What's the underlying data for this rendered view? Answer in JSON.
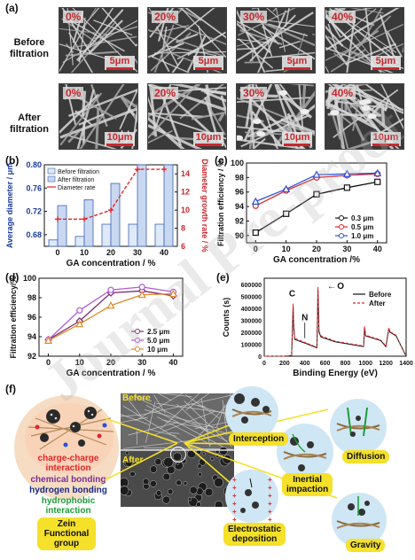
{
  "panel_labels": {
    "a": "(a)",
    "b": "(b)",
    "c": "(c)",
    "d": "(d)",
    "e": "(e)",
    "f": "(f)"
  },
  "panel_a": {
    "row_labels": [
      "Before\nfiltration",
      "After\nfiltration"
    ],
    "concentrations": [
      "0%",
      "20%",
      "30%",
      "40%"
    ],
    "scale_before": "5μm",
    "scale_after": "10μm"
  },
  "panel_f": {
    "before_label": "Before",
    "after_label": "After",
    "mechanisms": [
      "Interception",
      "Inertial\nimpaction",
      "Diffusion",
      "Electrostatic\ndeposition",
      "Gravity"
    ],
    "interactions": [
      "charge-charge\ninteraction",
      "chemical bonding",
      "hydrogen bonding",
      "hydrophobic\ninteraction"
    ],
    "interaction_colors": [
      "#e0262b",
      "#7b2d92",
      "#1a2a8a",
      "#1f9c3a"
    ],
    "zein_label": "Zein\nFunctional\ngroup"
  },
  "watermark": "Journal Pre-proof",
  "chart_data": [
    {
      "panel": "b",
      "type": "bar",
      "categories": [
        "0",
        "10",
        "20",
        "30",
        "40"
      ],
      "series": [
        {
          "name": "Before filtration",
          "values": [
            0.671,
            0.677,
            0.698,
            0.698,
            0.698
          ]
        },
        {
          "name": "After filtration",
          "values": [
            0.73,
            0.74,
            0.768,
            0.8,
            0.8
          ]
        },
        {
          "name": "Diameter rate",
          "values": [
            9.0,
            9.0,
            10.0,
            14.5,
            14.5
          ]
        }
      ],
      "xlabel": "GA concentration / %",
      "ylabel": "Average diameter / μm",
      "y2label": "Diameter growth rate / %",
      "ylim": [
        0.66,
        0.8
      ],
      "yticks": [
        "0.68",
        "0.72",
        "0.76",
        "0.80"
      ],
      "y2ticks": [
        "6",
        "8",
        "10",
        "12",
        "14"
      ],
      "xticks": [
        "0",
        "10",
        "20",
        "30",
        "40"
      ]
    },
    {
      "panel": "c",
      "type": "line",
      "x": [
        0,
        10,
        20,
        30,
        40
      ],
      "series": [
        {
          "name": "0.3 μm",
          "values": [
            90.4,
            93.0,
            95.7,
            96.6,
            97.4
          ]
        },
        {
          "name": "0.5 μm",
          "values": [
            94.1,
            96.2,
            98.0,
            98.3,
            98.5
          ]
        },
        {
          "name": "1.0 μm",
          "values": [
            94.7,
            96.4,
            98.4,
            98.5,
            98.6
          ]
        }
      ],
      "xlabel": "GA concentration /%",
      "ylabel": "Filtration efficiency / %",
      "ylim": [
        89,
        100
      ],
      "yticks": [
        "90",
        "92",
        "94",
        "96",
        "98",
        "100"
      ],
      "xticks": [
        "0",
        "10",
        "20",
        "30",
        "40"
      ],
      "colors": [
        "#111111",
        "#e0262b",
        "#2a4fd8"
      ],
      "markers": [
        "square",
        "circle",
        "triangle"
      ],
      "legend": "bottom-right"
    },
    {
      "panel": "d",
      "type": "line",
      "x": [
        0,
        10,
        20,
        30,
        40
      ],
      "series": [
        {
          "name": "2.5 μm",
          "values": [
            93.7,
            95.6,
            98.5,
            98.7,
            98.2
          ]
        },
        {
          "name": "5.0 μm",
          "values": [
            93.7,
            96.7,
            98.8,
            99.1,
            98.6
          ]
        },
        {
          "name": "10  μm",
          "values": [
            93.6,
            95.3,
            97.2,
            98.3,
            98.4
          ]
        }
      ],
      "xlabel": "GA concentration / %",
      "ylabel": "Filtration efficiency/%",
      "ylim": [
        92,
        100
      ],
      "yticks": [
        "92",
        "94",
        "96",
        "98",
        "100"
      ],
      "xticks": [
        "0",
        "10",
        "20",
        "30",
        "40"
      ],
      "colors": [
        "#7b2d6f",
        "#b35ad6",
        "#e08a2a"
      ],
      "markers": [
        "diamond",
        "circle",
        "triangle"
      ],
      "legend": "bottom-right"
    },
    {
      "panel": "e",
      "type": "line",
      "x": [
        0,
        200,
        270,
        285,
        290,
        300,
        400,
        520,
        530,
        540,
        560,
        700,
        980,
        990,
        1000,
        1150,
        1200,
        1230,
        1240,
        1300,
        1400
      ],
      "series": [
        {
          "name": "Before",
          "values": [
            0,
            0,
            5000,
            420000,
            260000,
            140000,
            110000,
            70000,
            560000,
            200000,
            160000,
            120000,
            80000,
            240000,
            170000,
            130000,
            80000,
            230000,
            200000,
            170000,
            0
          ]
        },
        {
          "name": "After",
          "values": [
            0,
            0,
            5000,
            440000,
            270000,
            150000,
            115000,
            75000,
            580000,
            210000,
            170000,
            125000,
            85000,
            250000,
            175000,
            135000,
            85000,
            235000,
            205000,
            175000,
            0
          ]
        }
      ],
      "xlabel": "Binding Energy (eV)",
      "ylabel": "Counts (s)",
      "xlim": [
        0,
        1400
      ],
      "ylim": [
        0,
        650000
      ],
      "yticks": [
        "0",
        "100000",
        "200000",
        "300000",
        "400000",
        "500000",
        "600000"
      ],
      "xticks": [
        "0",
        "200",
        "400",
        "600",
        "800",
        "1000",
        "1200",
        "1400"
      ],
      "annotations": [
        "C",
        "N",
        "O"
      ],
      "legend": "top-right"
    }
  ]
}
